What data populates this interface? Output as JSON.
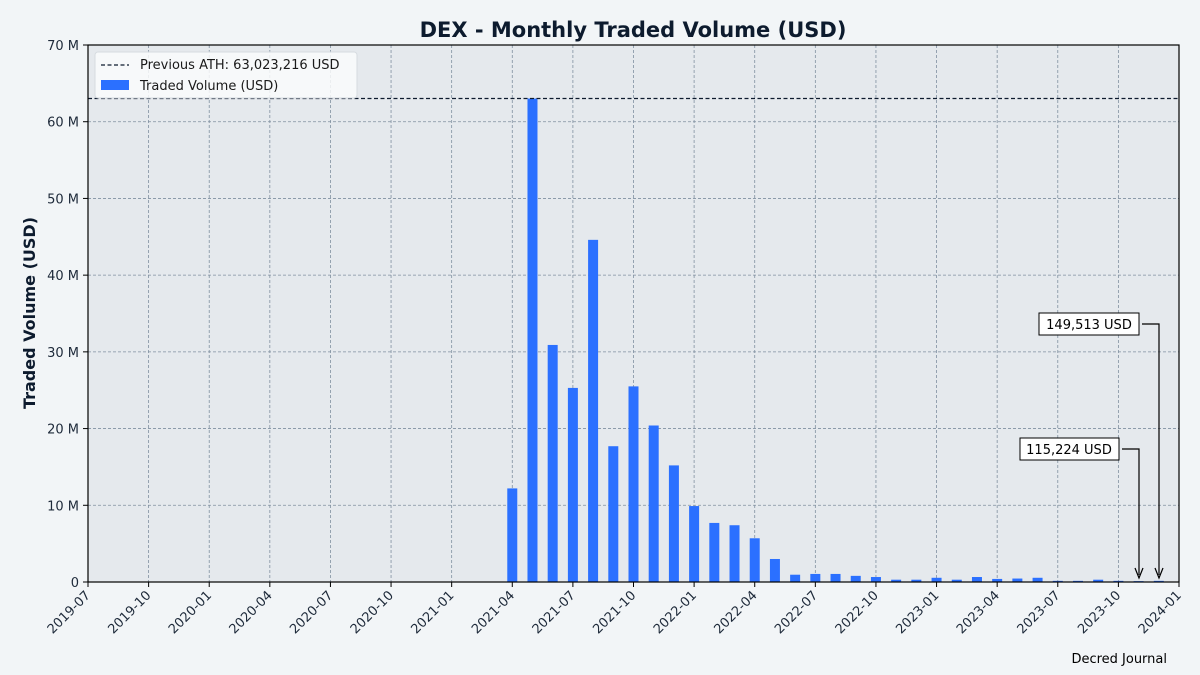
{
  "chart_data": {
    "type": "bar",
    "title": "DEX - Monthly Traded Volume (USD)",
    "xlabel": "",
    "ylabel": "Traded Volume (USD)",
    "ylim": [
      0,
      70000000
    ],
    "xlim": [
      "2019-07",
      "2024-01"
    ],
    "grid": true,
    "legend_position": "upper left",
    "y_ticks": [
      {
        "value": 0,
        "label": "0"
      },
      {
        "value": 10000000,
        "label": "10 M"
      },
      {
        "value": 20000000,
        "label": "20 M"
      },
      {
        "value": 30000000,
        "label": "30 M"
      },
      {
        "value": 40000000,
        "label": "40 M"
      },
      {
        "value": 50000000,
        "label": "50 M"
      },
      {
        "value": 60000000,
        "label": "60 M"
      },
      {
        "value": 70000000,
        "label": "70 M"
      }
    ],
    "x_ticks": [
      "2019-07",
      "2019-10",
      "2020-01",
      "2020-04",
      "2020-07",
      "2020-10",
      "2021-01",
      "2021-04",
      "2021-07",
      "2021-10",
      "2022-01",
      "2022-04",
      "2022-07",
      "2022-10",
      "2023-01",
      "2023-04",
      "2023-07",
      "2023-10",
      "2024-01"
    ],
    "categories": [
      "2021-04",
      "2021-05",
      "2021-06",
      "2021-07",
      "2021-08",
      "2021-09",
      "2021-10",
      "2021-11",
      "2021-12",
      "2022-01",
      "2022-02",
      "2022-03",
      "2022-04",
      "2022-05",
      "2022-06",
      "2022-07",
      "2022-08",
      "2022-09",
      "2022-10",
      "2022-11",
      "2022-12",
      "2023-01",
      "2023-02",
      "2023-03",
      "2023-04",
      "2023-05",
      "2023-06",
      "2023-07",
      "2023-08",
      "2023-09",
      "2023-10",
      "2023-11",
      "2023-12"
    ],
    "series": [
      {
        "name": "Traded Volume (USD)",
        "color": "#2b70ff",
        "values": [
          12200000,
          63023216,
          30900000,
          25300000,
          44600000,
          17700000,
          25500000,
          20400000,
          15200000,
          9900000,
          7700000,
          7400000,
          5700000,
          3000000,
          950000,
          1050000,
          1050000,
          800000,
          650000,
          300000,
          300000,
          550000,
          300000,
          650000,
          400000,
          450000,
          550000,
          150000,
          150000,
          300000,
          150000,
          115224,
          149513
        ]
      }
    ],
    "reference_line": {
      "name": "Previous ATH: 63,023,216 USD",
      "value": 63023216,
      "style": "dashed",
      "color": "#0d1b2e"
    },
    "legend": [
      {
        "label": "Previous ATH: 63,023,216 USD",
        "kind": "dashed-line"
      },
      {
        "label": "Traded Volume (USD)",
        "kind": "bar"
      }
    ],
    "annotations": [
      {
        "text": "149,513 USD",
        "target": "2023-12"
      },
      {
        "text": "115,224 USD",
        "target": "2023-11"
      }
    ],
    "credit": "Decred Journal"
  },
  "colors": {
    "background": "#f2f5f7",
    "plot_background": "#e5e9ed",
    "bar": "#2b70ff",
    "grid": "#8090a0",
    "text": "#0d1b2e"
  }
}
